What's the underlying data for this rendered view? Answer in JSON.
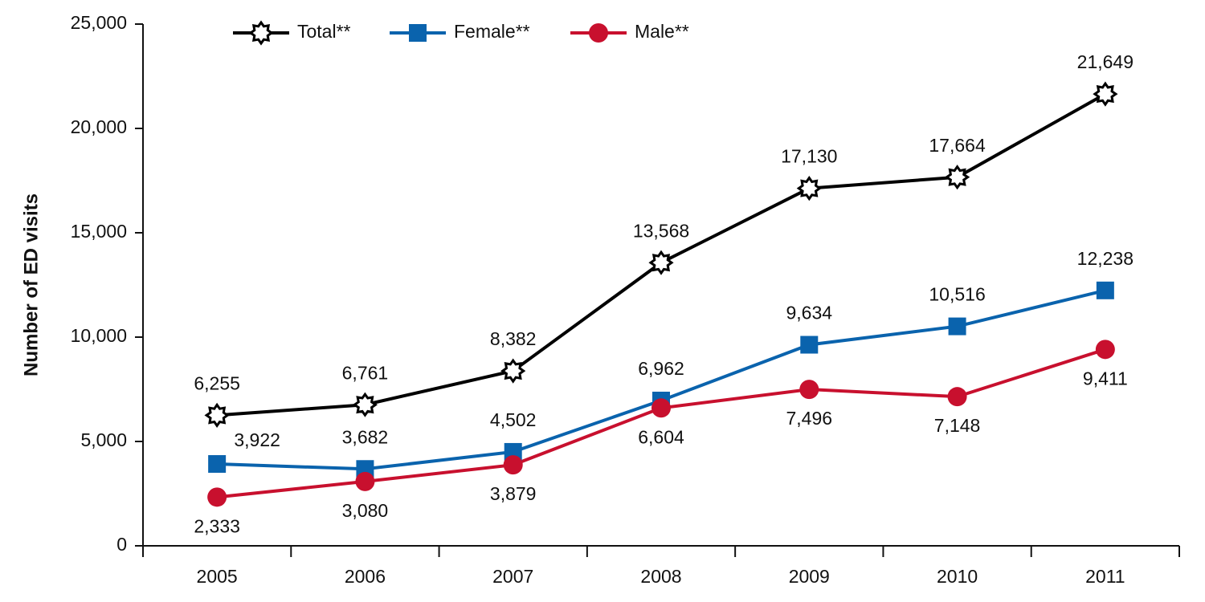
{
  "chart_data": {
    "type": "line",
    "y_label": "Number of ED visits",
    "categories": [
      "2005",
      "2006",
      "2007",
      "2008",
      "2009",
      "2010",
      "2011"
    ],
    "ylim": [
      0,
      25000
    ],
    "yticks": [
      0,
      {
        "value": 5000,
        "label": "5,000"
      },
      {
        "value": 10000,
        "label": "10,000"
      },
      {
        "value": 15000,
        "label": "15,000"
      },
      {
        "value": 20000,
        "label": "20,000"
      },
      {
        "value": 25000,
        "label": "25,000"
      }
    ],
    "legend": "top",
    "series": [
      {
        "name": "Total**",
        "color": "#000000",
        "marker": "star",
        "values": [
          6255,
          6761,
          8382,
          13568,
          17130,
          17664,
          21649
        ],
        "value_labels": [
          "6,255",
          "6,761",
          "8,382",
          "13,568",
          "17,130",
          "17,664",
          "21,649"
        ]
      },
      {
        "name": "Female**",
        "color": "#0a63ad",
        "marker": "square",
        "values": [
          3922,
          3682,
          4502,
          6962,
          9634,
          10516,
          12238
        ],
        "value_labels": [
          "3,922",
          "3,682",
          "4,502",
          "6,962",
          "9,634",
          "10,516",
          "12,238"
        ]
      },
      {
        "name": "Male**",
        "color": "#c8102e",
        "marker": "circle",
        "values": [
          2333,
          3080,
          3879,
          6604,
          7496,
          7148,
          9411
        ],
        "value_labels": [
          "2,333",
          "3,080",
          "3,879",
          "6,604",
          "7,496",
          "7,148",
          "9,411"
        ]
      }
    ]
  }
}
